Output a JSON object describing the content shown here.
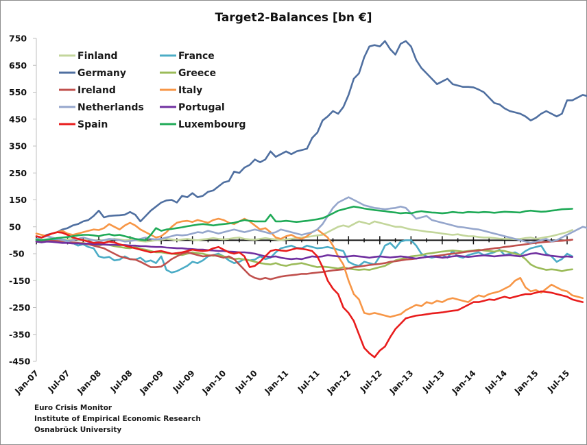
{
  "chart_data": {
    "type": "line",
    "title": "Target2-Balances [bn €]",
    "xlabel": "",
    "ylabel": "",
    "ylim": [
      -450,
      750
    ],
    "yticks": [
      750,
      650,
      550,
      450,
      350,
      250,
      150,
      50,
      -50,
      -150,
      -250,
      -350,
      -450
    ],
    "ytick_labels": [
      "750",
      "650",
      "550",
      "450",
      "350",
      "250",
      "150",
      "50",
      "-50",
      "-150",
      "-250",
      "-350",
      "-450"
    ],
    "grid": false,
    "legend_position": "top-left",
    "x_start": "Jan-07",
    "x_frequency": "monthly",
    "x_tick_labels": [
      "Jan-07",
      "Jul-07",
      "Jan-08",
      "Jul-08",
      "Jan-09",
      "Jul-09",
      "Jan-10",
      "Jul-10",
      "Jan-11",
      "Jul-11",
      "Jan-12",
      "Jul-12",
      "Jan-13",
      "Jul-13",
      "Jan-14",
      "Jul-14",
      "Jan-15",
      "Jul-15"
    ],
    "series": [
      {
        "name": "Finland",
        "color": "#c3d69b",
        "values": [
          5,
          3,
          0,
          2,
          -2,
          0,
          3,
          5,
          2,
          0,
          3,
          0,
          -2,
          0,
          2,
          5,
          3,
          0,
          2,
          0,
          -3,
          -5,
          -3,
          0,
          2,
          5,
          3,
          0,
          3,
          5,
          2,
          0,
          3,
          5,
          8,
          5,
          3,
          5,
          8,
          10,
          5,
          3,
          2,
          5,
          8,
          5,
          3,
          0,
          3,
          5,
          8,
          10,
          12,
          15,
          18,
          20,
          30,
          40,
          50,
          55,
          50,
          60,
          70,
          65,
          60,
          70,
          65,
          60,
          55,
          50,
          50,
          45,
          40,
          38,
          35,
          32,
          30,
          28,
          25,
          22,
          20,
          22,
          18,
          15,
          15,
          12,
          10,
          10,
          8,
          6,
          5,
          5,
          4,
          5,
          8,
          10,
          5,
          8,
          12,
          15,
          20,
          25,
          30,
          38
        ]
      },
      {
        "name": "France",
        "color": "#4bacc6",
        "values": [
          0,
          -5,
          -2,
          0,
          5,
          2,
          -3,
          -10,
          -20,
          -15,
          -25,
          -30,
          -60,
          -65,
          -62,
          -75,
          -72,
          -60,
          -70,
          -72,
          -65,
          -80,
          -75,
          -85,
          -60,
          -110,
          -120,
          -115,
          -105,
          -95,
          -80,
          -85,
          -75,
          -60,
          -55,
          -50,
          -60,
          -75,
          -85,
          -80,
          -70,
          -75,
          -72,
          -60,
          -70,
          -65,
          -45,
          -30,
          -25,
          -20,
          -28,
          -30,
          -20,
          -25,
          -30,
          -28,
          -25,
          -30,
          -35,
          -40,
          -80,
          -90,
          -95,
          -80,
          -85,
          -90,
          -60,
          -20,
          -10,
          -30,
          -5,
          0,
          0,
          -20,
          -50,
          -60,
          -65,
          -60,
          -55,
          -65,
          -40,
          -60,
          -65,
          -55,
          -50,
          -45,
          -55,
          -50,
          -45,
          -35,
          -55,
          -50,
          -45,
          -55,
          -40,
          -30,
          -25,
          -20,
          -50,
          -60,
          -80,
          -70,
          -50,
          -60
        ]
      },
      {
        "name": "Germany",
        "color": "#4f6fa0",
        "values": [
          5,
          10,
          20,
          25,
          30,
          40,
          45,
          55,
          60,
          70,
          75,
          90,
          110,
          85,
          90,
          92,
          93,
          95,
          105,
          95,
          70,
          90,
          110,
          125,
          140,
          148,
          150,
          140,
          165,
          160,
          175,
          160,
          165,
          180,
          185,
          200,
          215,
          220,
          255,
          250,
          270,
          280,
          300,
          290,
          300,
          330,
          310,
          320,
          330,
          320,
          330,
          335,
          340,
          380,
          400,
          445,
          460,
          480,
          470,
          495,
          540,
          600,
          620,
          680,
          720,
          725,
          720,
          740,
          710,
          690,
          730,
          740,
          720,
          670,
          640,
          620,
          600,
          580,
          590,
          600,
          580,
          575,
          570,
          570,
          568,
          560,
          550,
          530,
          510,
          505,
          490,
          480,
          475,
          470,
          460,
          445,
          455,
          470,
          480,
          470,
          460,
          470,
          520,
          520,
          530,
          540,
          535,
          530,
          545,
          560
        ]
      },
      {
        "name": "Greece",
        "color": "#9bbb59",
        "values": [
          0,
          -2,
          -3,
          -5,
          -3,
          -5,
          -8,
          -10,
          -12,
          -10,
          -15,
          -18,
          -20,
          -15,
          -18,
          -22,
          -25,
          -28,
          -30,
          -25,
          -32,
          -35,
          -40,
          -45,
          -45,
          -48,
          -50,
          -52,
          -55,
          -50,
          -45,
          -48,
          -50,
          -55,
          -58,
          -55,
          -60,
          -65,
          -70,
          -68,
          -72,
          -75,
          -80,
          -85,
          -88,
          -90,
          -85,
          -92,
          -95,
          -90,
          -88,
          -85,
          -90,
          -95,
          -100,
          -98,
          -100,
          -102,
          -105,
          -100,
          -105,
          -108,
          -110,
          -108,
          -110,
          -105,
          -100,
          -95,
          -85,
          -75,
          -70,
          -65,
          -60,
          -58,
          -55,
          -50,
          -48,
          -45,
          -42,
          -40,
          -38,
          -40,
          -42,
          -40,
          -38,
          -35,
          -38,
          -40,
          -42,
          -38,
          -40,
          -45,
          -50,
          -55,
          -70,
          -90,
          -100,
          -105,
          -110,
          -108,
          -110,
          -115,
          -110,
          -108
        ]
      },
      {
        "name": "Ireland",
        "color": "#c0504d",
        "values": [
          -5,
          -5,
          -3,
          -2,
          -3,
          -5,
          -10,
          -8,
          -10,
          -12,
          -15,
          -20,
          -25,
          -30,
          -40,
          -50,
          -60,
          -65,
          -70,
          -72,
          -80,
          -90,
          -100,
          -100,
          -98,
          -85,
          -70,
          -60,
          -50,
          -45,
          -50,
          -55,
          -60,
          -58,
          -55,
          -60,
          -65,
          -60,
          -70,
          -90,
          -110,
          -130,
          -140,
          -145,
          -140,
          -145,
          -140,
          -135,
          -132,
          -130,
          -128,
          -125,
          -125,
          -122,
          -120,
          -118,
          -115,
          -112,
          -110,
          -108,
          -105,
          -100,
          -98,
          -95,
          -92,
          -90,
          -88,
          -85,
          -80,
          -78,
          -75,
          -72,
          -70,
          -68,
          -65,
          -62,
          -60,
          -58,
          -55,
          -52,
          -50,
          -48,
          -45,
          -42,
          -40,
          -38,
          -35,
          -33,
          -30,
          -28,
          -25,
          -23,
          -20,
          -18,
          -15,
          -12,
          -10,
          -8,
          -6,
          -5,
          -3,
          -2,
          0,
          2
        ]
      },
      {
        "name": "Italy",
        "color": "#f79646",
        "values": [
          25,
          20,
          15,
          25,
          30,
          35,
          25,
          20,
          25,
          30,
          35,
          40,
          38,
          45,
          60,
          50,
          40,
          55,
          65,
          55,
          40,
          30,
          20,
          10,
          15,
          30,
          50,
          65,
          70,
          72,
          68,
          75,
          70,
          65,
          75,
          80,
          75,
          65,
          60,
          70,
          80,
          70,
          55,
          40,
          45,
          30,
          10,
          5,
          15,
          20,
          10,
          5,
          15,
          30,
          40,
          25,
          10,
          -20,
          -60,
          -90,
          -150,
          -200,
          -220,
          -270,
          -275,
          -270,
          -275,
          -280,
          -285,
          -280,
          -275,
          -260,
          -250,
          -240,
          -245,
          -230,
          -235,
          -225,
          -230,
          -220,
          -215,
          -220,
          -225,
          -230,
          -215,
          -205,
          -210,
          -200,
          -195,
          -190,
          -180,
          -170,
          -150,
          -140,
          -175,
          -190,
          -185,
          -195,
          -180,
          -165,
          -175,
          -185,
          -190,
          -205,
          -210,
          -215
        ]
      },
      {
        "name": "Netherlands",
        "color": "#95a6cc",
        "values": [
          5,
          10,
          15,
          10,
          5,
          0,
          -5,
          0,
          5,
          10,
          5,
          0,
          -5,
          0,
          5,
          3,
          0,
          -5,
          -3,
          0,
          5,
          10,
          5,
          3,
          5,
          10,
          15,
          20,
          18,
          20,
          25,
          30,
          28,
          35,
          30,
          25,
          30,
          35,
          40,
          35,
          30,
          35,
          40,
          35,
          30,
          25,
          30,
          40,
          35,
          30,
          25,
          20,
          25,
          30,
          40,
          60,
          90,
          120,
          140,
          150,
          160,
          150,
          140,
          130,
          125,
          120,
          118,
          115,
          118,
          120,
          125,
          120,
          100,
          80,
          85,
          90,
          75,
          70,
          65,
          60,
          55,
          50,
          48,
          45,
          42,
          40,
          35,
          30,
          25,
          20,
          15,
          10,
          5,
          0,
          -5,
          -10,
          -5,
          0,
          5,
          -5,
          0,
          10,
          20,
          30,
          40,
          50,
          45,
          55
        ]
      },
      {
        "name": "Portugal",
        "color": "#7030a0",
        "values": [
          -5,
          -8,
          -5,
          -6,
          -8,
          -10,
          -10,
          -12,
          -12,
          -13,
          -12,
          -15,
          -15,
          -16,
          -17,
          -17,
          -18,
          -18,
          -20,
          -20,
          -22,
          -22,
          -24,
          -25,
          -25,
          -27,
          -28,
          -30,
          -30,
          -32,
          -33,
          -35,
          -35,
          -37,
          -38,
          -40,
          -40,
          -42,
          -43,
          -45,
          -45,
          -47,
          -50,
          -55,
          -60,
          -62,
          -60,
          -65,
          -68,
          -70,
          -68,
          -70,
          -65,
          -60,
          -62,
          -60,
          -55,
          -58,
          -60,
          -62,
          -60,
          -58,
          -60,
          -62,
          -65,
          -62,
          -60,
          -62,
          -64,
          -62,
          -60,
          -62,
          -65,
          -68,
          -65,
          -62,
          -60,
          -62,
          -65,
          -63,
          -60,
          -58,
          -60,
          -62,
          -60,
          -58,
          -56,
          -58,
          -60,
          -58,
          -56,
          -55,
          -58,
          -60,
          -55,
          -50,
          -48,
          -52,
          -55,
          -58,
          -60,
          -62,
          -60,
          -62
        ]
      },
      {
        "name": "Spain",
        "color": "#e81c1c",
        "values": [
          15,
          10,
          18,
          25,
          30,
          28,
          20,
          10,
          5,
          0,
          -5,
          -10,
          -8,
          -10,
          -5,
          -8,
          -15,
          -20,
          -25,
          -30,
          -35,
          -40,
          -45,
          -42,
          -40,
          -45,
          -50,
          -48,
          -45,
          -40,
          -35,
          -38,
          -40,
          -38,
          -30,
          -25,
          -35,
          -45,
          -50,
          -45,
          -60,
          -100,
          -95,
          -80,
          -60,
          -40,
          -35,
          -38,
          -40,
          -35,
          -30,
          -32,
          -35,
          -40,
          -60,
          -100,
          -150,
          -180,
          -200,
          -250,
          -270,
          -300,
          -350,
          -400,
          -420,
          -435,
          -410,
          -395,
          -360,
          -330,
          -310,
          -290,
          -285,
          -280,
          -278,
          -275,
          -272,
          -270,
          -268,
          -265,
          -262,
          -260,
          -250,
          -240,
          -230,
          -230,
          -225,
          -220,
          -222,
          -215,
          -210,
          -215,
          -210,
          -205,
          -200,
          -200,
          -195,
          -190,
          -192,
          -195,
          -200,
          -205,
          -210,
          -220,
          -225,
          -230
        ]
      },
      {
        "name": "Luxembourg",
        "color": "#1faa57",
        "values": [
          2,
          0,
          3,
          5,
          8,
          10,
          12,
          15,
          18,
          20,
          20,
          18,
          15,
          20,
          22,
          18,
          20,
          15,
          10,
          5,
          2,
          0,
          20,
          45,
          35,
          40,
          42,
          45,
          48,
          52,
          55,
          58,
          60,
          58,
          55,
          58,
          60,
          62,
          65,
          70,
          75,
          72,
          70,
          70,
          70,
          95,
          70,
          70,
          72,
          70,
          68,
          70,
          72,
          75,
          78,
          82,
          90,
          100,
          110,
          115,
          120,
          125,
          122,
          118,
          115,
          112,
          110,
          108,
          105,
          103,
          100,
          102,
          100,
          105,
          108,
          105,
          103,
          102,
          100,
          102,
          105,
          103,
          102,
          105,
          104,
          103,
          105,
          104,
          102,
          104,
          106,
          105,
          104,
          103,
          108,
          110,
          108,
          106,
          107,
          110,
          112,
          115,
          116,
          117
        ]
      }
    ]
  },
  "credits": [
    "Euro Crisis Monitor",
    "Institute of Empirical Economic Research",
    "Osnabrück University"
  ]
}
